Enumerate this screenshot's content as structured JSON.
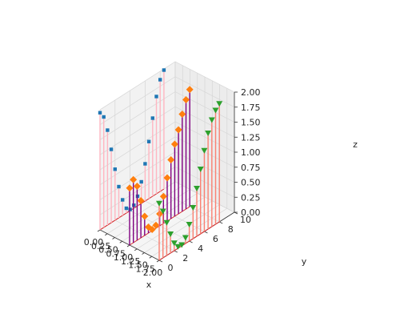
{
  "chart_data": {
    "type": "3d-stem",
    "title": "",
    "xlabel": "x",
    "ylabel": "y",
    "zlabel": "z",
    "xlim": [
      0,
      2
    ],
    "ylim": [
      0,
      10
    ],
    "zlim": [
      0,
      2
    ],
    "x_ticks": [
      "0.00",
      "0.25",
      "0.50",
      "0.75",
      "1.00",
      "1.25",
      "1.50",
      "1.75",
      "2.00"
    ],
    "y_ticks": [
      "0",
      "2",
      "4",
      "6",
      "8",
      "10"
    ],
    "z_ticks": [
      "0.00",
      "0.25",
      "0.50",
      "0.75",
      "1.00",
      "1.25",
      "1.50",
      "1.75",
      "2.00"
    ],
    "grid": true,
    "series": [
      {
        "stem_color": "#ffb6c1",
        "marker": "square",
        "marker_color": "#1f77b4",
        "baseline_color": "#d62728",
        "points": [
          {
            "x": 0.0,
            "y": 0.0,
            "z": 1.95
          },
          {
            "x": 0.0,
            "y": 0.5,
            "z": 1.84
          },
          {
            "x": 0.0,
            "y": 1.0,
            "z": 1.58
          },
          {
            "x": 0.0,
            "y": 1.5,
            "z": 1.22
          },
          {
            "x": 0.0,
            "y": 2.0,
            "z": 0.85
          },
          {
            "x": 0.0,
            "y": 2.5,
            "z": 0.52
          },
          {
            "x": 0.0,
            "y": 3.0,
            "z": 0.26
          },
          {
            "x": 0.0,
            "y": 3.5,
            "z": 0.08
          },
          {
            "x": 0.0,
            "y": 4.0,
            "z": 0.02
          },
          {
            "x": 0.0,
            "y": 4.5,
            "z": 0.05
          },
          {
            "x": 0.0,
            "y": 5.0,
            "z": 0.16
          },
          {
            "x": 0.0,
            "y": 5.5,
            "z": 0.36
          },
          {
            "x": 0.0,
            "y": 6.0,
            "z": 0.62
          },
          {
            "x": 0.0,
            "y": 6.5,
            "z": 0.95
          },
          {
            "x": 0.0,
            "y": 7.0,
            "z": 1.3
          },
          {
            "x": 0.0,
            "y": 7.5,
            "z": 1.62
          },
          {
            "x": 0.0,
            "y": 8.0,
            "z": 1.86
          },
          {
            "x": 0.0,
            "y": 8.5,
            "z": 1.98
          }
        ]
      },
      {
        "stem_color": "#800080",
        "marker": "diamond",
        "marker_color": "#ff7f0e",
        "baseline_color": "#d62728",
        "points": [
          {
            "x": 1.0,
            "y": 0.0,
            "z": 0.95
          },
          {
            "x": 1.0,
            "y": 0.5,
            "z": 1.05
          },
          {
            "x": 1.0,
            "y": 1.0,
            "z": 0.9
          },
          {
            "x": 1.0,
            "y": 1.5,
            "z": 0.62
          },
          {
            "x": 1.0,
            "y": 2.0,
            "z": 0.32
          },
          {
            "x": 1.0,
            "y": 2.5,
            "z": 0.1
          },
          {
            "x": 1.0,
            "y": 3.0,
            "z": 0.02
          },
          {
            "x": 1.0,
            "y": 3.5,
            "z": 0.05
          },
          {
            "x": 1.0,
            "y": 4.0,
            "z": 0.2
          },
          {
            "x": 1.0,
            "y": 4.5,
            "z": 0.45
          },
          {
            "x": 1.0,
            "y": 5.0,
            "z": 0.72
          },
          {
            "x": 1.0,
            "y": 5.5,
            "z": 0.98
          },
          {
            "x": 1.0,
            "y": 6.0,
            "z": 1.2
          },
          {
            "x": 1.0,
            "y": 6.5,
            "z": 1.4
          },
          {
            "x": 1.0,
            "y": 7.0,
            "z": 1.62
          },
          {
            "x": 1.0,
            "y": 7.5,
            "z": 1.82
          },
          {
            "x": 1.0,
            "y": 8.0,
            "z": 1.95
          }
        ]
      },
      {
        "stem_color": "#fa8072",
        "marker": "triangle_down",
        "marker_color": "#2ca02c",
        "baseline_color": "#d62728",
        "points": [
          {
            "x": 2.0,
            "y": 0.0,
            "z": 0.95
          },
          {
            "x": 2.0,
            "y": 0.5,
            "z": 0.78
          },
          {
            "x": 2.0,
            "y": 1.0,
            "z": 0.55
          },
          {
            "x": 2.0,
            "y": 1.5,
            "z": 0.32
          },
          {
            "x": 2.0,
            "y": 2.0,
            "z": 0.13
          },
          {
            "x": 2.0,
            "y": 2.5,
            "z": 0.03
          },
          {
            "x": 2.0,
            "y": 3.0,
            "z": 0.02
          },
          {
            "x": 2.0,
            "y": 3.5,
            "z": 0.1
          },
          {
            "x": 2.0,
            "y": 4.0,
            "z": 0.28
          },
          {
            "x": 2.0,
            "y": 4.5,
            "z": 0.52
          },
          {
            "x": 2.0,
            "y": 5.0,
            "z": 0.8
          },
          {
            "x": 2.0,
            "y": 5.5,
            "z": 1.08
          },
          {
            "x": 2.0,
            "y": 6.0,
            "z": 1.35
          },
          {
            "x": 2.0,
            "y": 6.5,
            "z": 1.6
          },
          {
            "x": 2.0,
            "y": 7.0,
            "z": 1.78
          },
          {
            "x": 2.0,
            "y": 7.5,
            "z": 1.9
          },
          {
            "x": 2.0,
            "y": 8.0,
            "z": 1.97
          }
        ]
      }
    ]
  }
}
